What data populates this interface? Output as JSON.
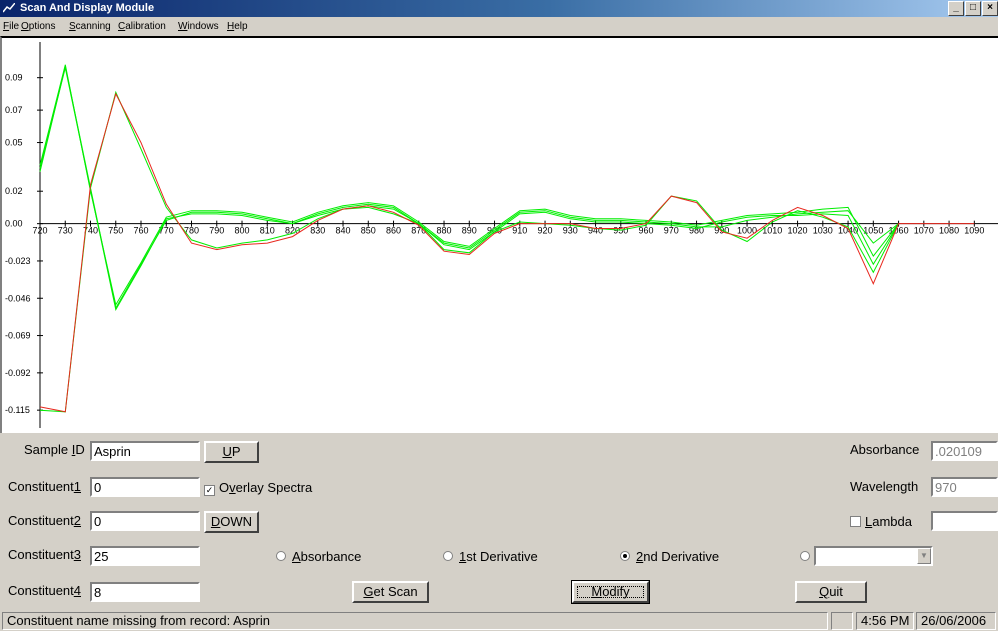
{
  "window": {
    "title": "Scan And Display Module",
    "buttons": [
      "_",
      "□",
      "×"
    ]
  },
  "menu": [
    {
      "label": "File",
      "mnemonic": "F",
      "rest": "ile"
    },
    {
      "label": "Options",
      "mnemonic": "O",
      "rest": "ptions"
    },
    {
      "label": "Scanning",
      "mnemonic": "S",
      "rest": "canning"
    },
    {
      "label": "Calibration",
      "mnemonic": "C",
      "rest": "alibration"
    },
    {
      "label": "Windows",
      "mnemonic": "W",
      "rest": "indows"
    },
    {
      "label": "Help",
      "mnemonic": "H",
      "rest": "elp"
    }
  ],
  "form": {
    "sample_id": {
      "label_pre": "Sample ",
      "label_mn": "I",
      "label_post": "D",
      "value": "Asprin"
    },
    "constituent1": {
      "label_pre": "Constituent",
      "label_mn": "1",
      "value": "0"
    },
    "constituent2": {
      "label_pre": "Constituent",
      "label_mn": "2",
      "value": "0"
    },
    "constituent3": {
      "label_pre": "Constituent",
      "label_mn": "3",
      "value": "25"
    },
    "constituent4": {
      "label_pre": "Constituent",
      "label_mn": "4",
      "value": "8"
    },
    "up_button": {
      "mn": "U",
      "rest": "P"
    },
    "down_button": {
      "mn": "D",
      "rest": "OWN"
    },
    "overlay": {
      "pre": "O",
      "mn": "v",
      "post": "erlay Spectra",
      "checked": true
    },
    "absorbance_label": "Absorbance",
    "absorbance_value": ".020109",
    "wavelength_label": "Wavelength",
    "wavelength_value": "970",
    "lambda": {
      "mn": "L",
      "rest": "ambda",
      "checked": false,
      "value": ""
    },
    "radios": [
      {
        "mn": "A",
        "rest": "bsorbance",
        "checked": false
      },
      {
        "mn": "1",
        "rest": "st Derivative",
        "checked": false
      },
      {
        "mn": "2",
        "rest": "nd Derivative",
        "checked": true
      },
      {
        "mn": "",
        "rest": "",
        "checked": false
      }
    ],
    "combo_value": "",
    "get_scan": {
      "mn": "G",
      "rest": "et Scan"
    },
    "modify": {
      "mn": "M",
      "rest": "odify"
    },
    "quit": {
      "mn": "Q",
      "rest": "uit"
    }
  },
  "status": {
    "message": "Constituent name missing from record: Asprin",
    "time": "4:56 PM",
    "date": "26/06/2006"
  },
  "colors": {
    "series_green": "#00ee00",
    "series_red": "#e8281e"
  },
  "chart_data": {
    "type": "line",
    "x": [
      720,
      730,
      740,
      750,
      760,
      770,
      780,
      790,
      800,
      810,
      820,
      830,
      840,
      850,
      860,
      870,
      880,
      890,
      900,
      910,
      920,
      930,
      940,
      950,
      960,
      970,
      980,
      990,
      1000,
      1010,
      1020,
      1030,
      1040,
      1050,
      1060,
      1070,
      1080,
      1090
    ],
    "x_tick_labels": [
      "720",
      "730",
      "740",
      "750",
      "760",
      "770",
      "780",
      "790",
      "800",
      "810",
      "820",
      "830",
      "840",
      "850",
      "860",
      "870",
      "880",
      "890",
      "900",
      "910",
      "920",
      "930",
      "940",
      "950",
      "960",
      "970",
      "980",
      "990",
      "1000",
      "1010",
      "1020",
      "1030",
      "1040",
      "1050",
      "1060",
      "1070",
      "1080",
      "1090"
    ],
    "y_ticks": [
      0.09,
      0.07,
      0.05,
      0.02,
      0.0,
      -0.023,
      -0.046,
      -0.069,
      -0.092,
      -0.115
    ],
    "y_tick_labels": [
      "0.09",
      "0.07",
      "0.05",
      "0.02",
      "0.00",
      "-0.023",
      "-0.046",
      "-0.069",
      "-0.092",
      "-0.115"
    ],
    "ylim": [
      -0.126,
      0.112
    ],
    "xlim": [
      720,
      1097
    ],
    "series": [
      {
        "color": "red",
        "values": [
          -0.113,
          -0.116,
          0.024,
          0.08,
          0.05,
          0.012,
          -0.012,
          -0.016,
          -0.013,
          -0.012,
          -0.008,
          0.002,
          0.009,
          0.011,
          0.007,
          -0.001,
          -0.017,
          -0.019,
          -0.006,
          0.0,
          0.0,
          0.0,
          -0.003,
          -0.003,
          0.0,
          0.017,
          0.013,
          -0.005,
          -0.009,
          0.002,
          0.01,
          0.005,
          -0.003,
          -0.037,
          0.0,
          0.0,
          0.0,
          0.0
        ]
      },
      {
        "color": "green",
        "values": [
          -0.115,
          -0.116,
          0.022,
          0.081,
          0.046,
          0.01,
          -0.01,
          -0.015,
          -0.012,
          -0.01,
          -0.006,
          0.003,
          0.009,
          0.01,
          0.006,
          0.0,
          -0.016,
          -0.018,
          -0.005,
          0.001,
          0.0,
          -0.001,
          -0.003,
          -0.004,
          -0.001,
          0.017,
          0.014,
          -0.004,
          -0.011,
          0.001,
          0.008,
          0.004,
          -0.002,
          -0.03,
          0.0,
          null,
          null,
          null
        ]
      },
      {
        "color": "green",
        "values": [
          0.032,
          0.097,
          0.022,
          -0.052,
          -0.025,
          0.002,
          0.007,
          0.007,
          0.006,
          0.003,
          0.0,
          0.006,
          0.01,
          0.012,
          0.01,
          0.0,
          -0.012,
          -0.015,
          -0.004,
          0.007,
          0.008,
          0.004,
          0.002,
          0.002,
          0.001,
          0.0,
          -0.002,
          -0.002,
          0.002,
          0.004,
          0.006,
          0.007,
          0.008,
          -0.012,
          0.0,
          null,
          null,
          null
        ]
      },
      {
        "color": "green",
        "values": [
          0.036,
          0.098,
          0.02,
          -0.05,
          -0.024,
          0.004,
          0.008,
          0.008,
          0.007,
          0.004,
          0.001,
          0.007,
          0.011,
          0.013,
          0.011,
          0.001,
          -0.011,
          -0.014,
          -0.003,
          0.008,
          0.009,
          0.005,
          0.003,
          0.003,
          0.002,
          0.001,
          -0.001,
          0.002,
          0.005,
          0.006,
          0.007,
          0.009,
          0.01,
          -0.02,
          0.0,
          null,
          null,
          null
        ]
      },
      {
        "color": "green",
        "values": [
          0.034,
          0.096,
          0.021,
          -0.053,
          -0.026,
          0.003,
          0.006,
          0.006,
          0.005,
          0.002,
          0.0,
          0.005,
          0.009,
          0.011,
          0.009,
          0.0,
          -0.013,
          -0.016,
          -0.005,
          0.006,
          0.007,
          0.003,
          0.001,
          0.001,
          0.0,
          -0.001,
          -0.003,
          0.001,
          0.004,
          0.005,
          0.005,
          0.006,
          0.005,
          -0.025,
          0.0,
          null,
          null,
          null
        ]
      }
    ]
  }
}
